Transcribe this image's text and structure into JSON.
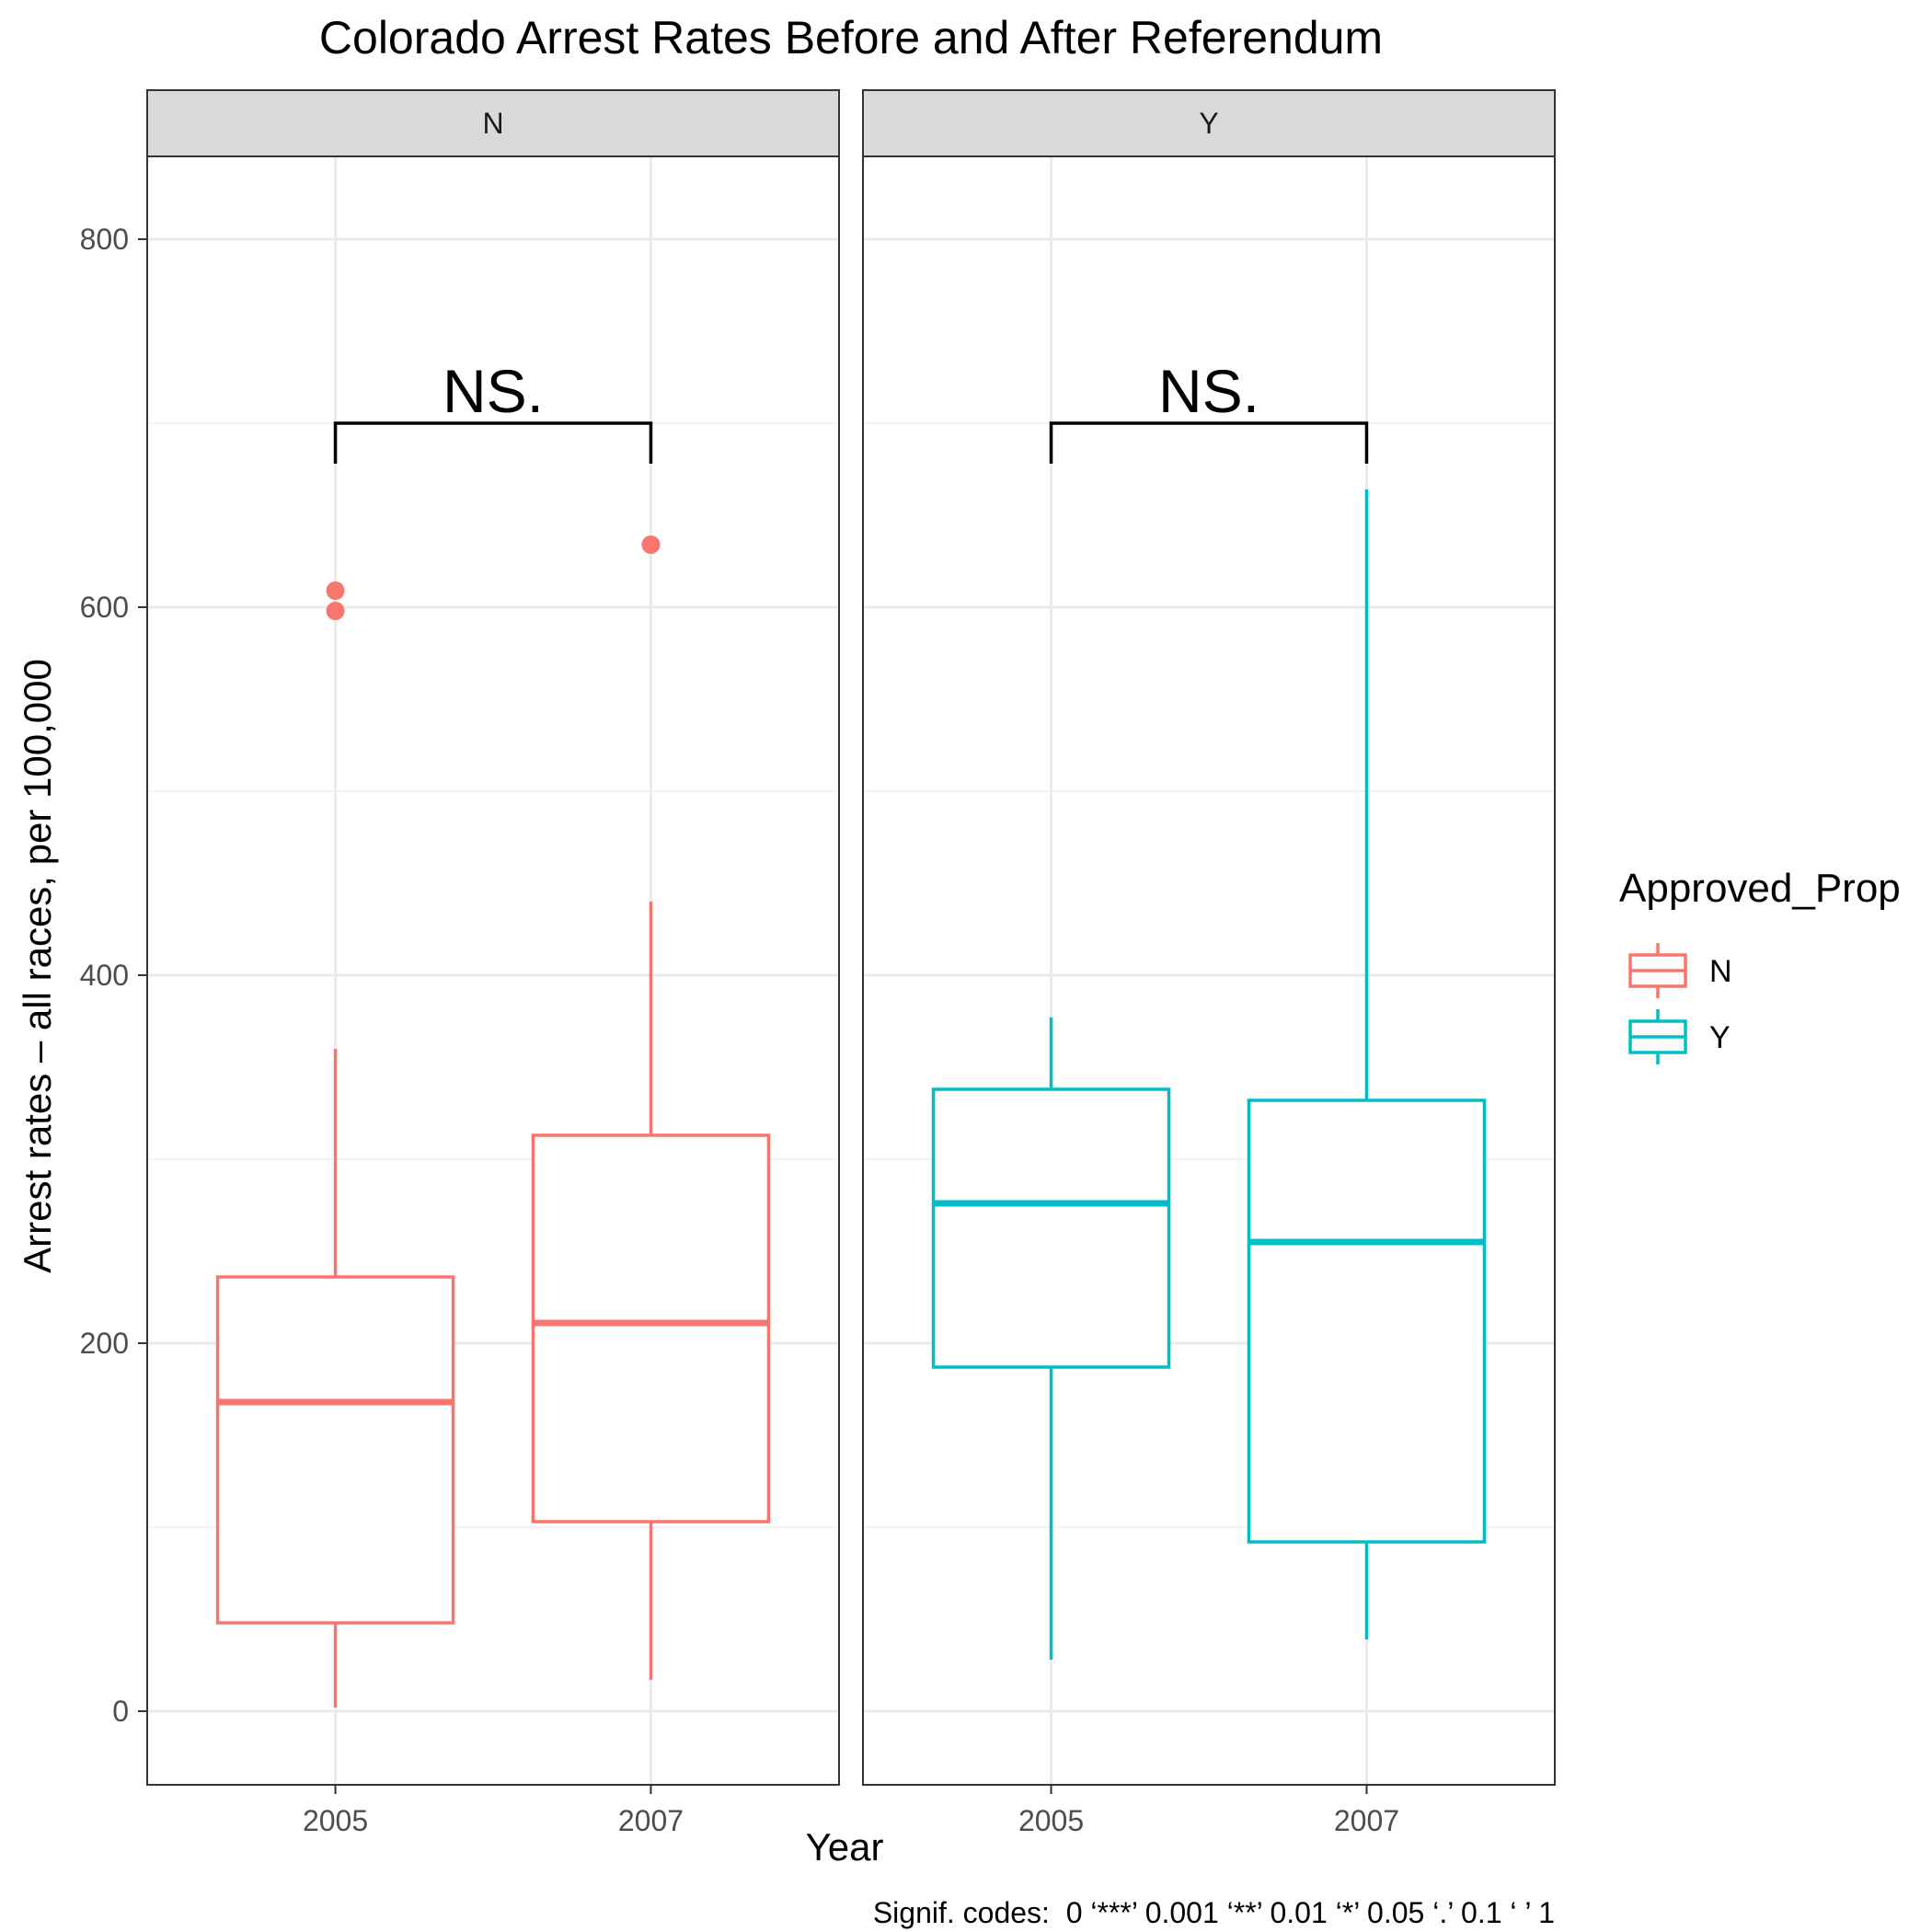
{
  "chart_data": {
    "type": "boxplot",
    "title": "Colorado Arrest Rates Before and After Referendum",
    "xlabel": "Year",
    "ylabel": "Arrest rates – all races, per 100,000",
    "ylim": [
      -40,
      845
    ],
    "y_ticks": [
      0,
      200,
      400,
      600,
      800
    ],
    "categories": [
      "2005",
      "2007"
    ],
    "facets": [
      {
        "label": "N",
        "color": "#F8766D",
        "boxes": [
          {
            "x": "2005",
            "lower_whisker": 2,
            "q1": 48,
            "median": 168,
            "q3": 236,
            "upper_whisker": 360,
            "outliers": [
              598,
              609
            ]
          },
          {
            "x": "2007",
            "lower_whisker": 17,
            "q1": 103,
            "median": 211,
            "q3": 313,
            "upper_whisker": 440,
            "outliers": [
              634
            ]
          }
        ],
        "bracket": {
          "from": "2005",
          "to": "2007",
          "y": 700,
          "label": "NS."
        }
      },
      {
        "label": "Y",
        "color": "#00BFC4",
        "boxes": [
          {
            "x": "2005",
            "lower_whisker": 28,
            "q1": 187,
            "median": 276,
            "q3": 338,
            "upper_whisker": 377,
            "outliers": []
          },
          {
            "x": "2007",
            "lower_whisker": 39,
            "q1": 92,
            "median": 255,
            "q3": 332,
            "upper_whisker": 664,
            "outliers": []
          }
        ],
        "bracket": {
          "from": "2005",
          "to": "2007",
          "y": 700,
          "label": "NS."
        }
      }
    ],
    "legend": {
      "title": "Approved_Prop",
      "position": "right",
      "items": [
        {
          "label": "N",
          "color": "#F8766D"
        },
        {
          "label": "Y",
          "color": "#00BFC4"
        }
      ]
    },
    "caption": "Signif. codes:  0 ‘***’ 0.001 ‘**’ 0.01 ‘*’ 0.05 ‘.’ 0.1 ‘ ’ 1",
    "grid": true
  }
}
